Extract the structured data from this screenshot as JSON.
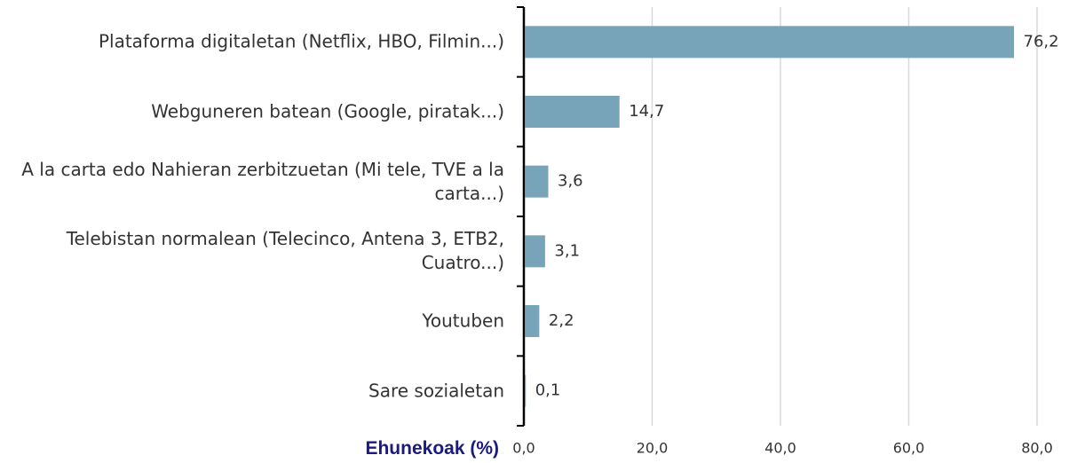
{
  "chart_data": {
    "type": "bar",
    "orientation": "horizontal",
    "x_axis_label": "Ehunekoak (%)",
    "categories": [
      "Plataforma digitaletan (Netflix, HBO, Filmin...)",
      "Webguneren batean (Google, piratak...)",
      "A la carta edo Nahieran zerbitzuetan (Mi tele, TVE a la carta...)",
      "Telebistan normalean (Telecinco, Antena 3, ETB2, Cuatro...)",
      "Youtuben",
      "Sare sozialetan"
    ],
    "values": [
      76.2,
      14.7,
      3.6,
      3.1,
      2.2,
      0.1
    ],
    "value_labels": [
      "76,2",
      "14,7",
      "3,6",
      "3,1",
      "2,2",
      "0,1"
    ],
    "color": "#77a4b9",
    "xlim": [
      0,
      80
    ],
    "xticks": [
      {
        "value": 0,
        "label": "0,0"
      },
      {
        "value": 20,
        "label": "20,0"
      },
      {
        "value": 40,
        "label": "40,0"
      },
      {
        "value": 60,
        "label": "60,0"
      },
      {
        "value": 80,
        "label": "80,0"
      }
    ],
    "grid": true
  }
}
